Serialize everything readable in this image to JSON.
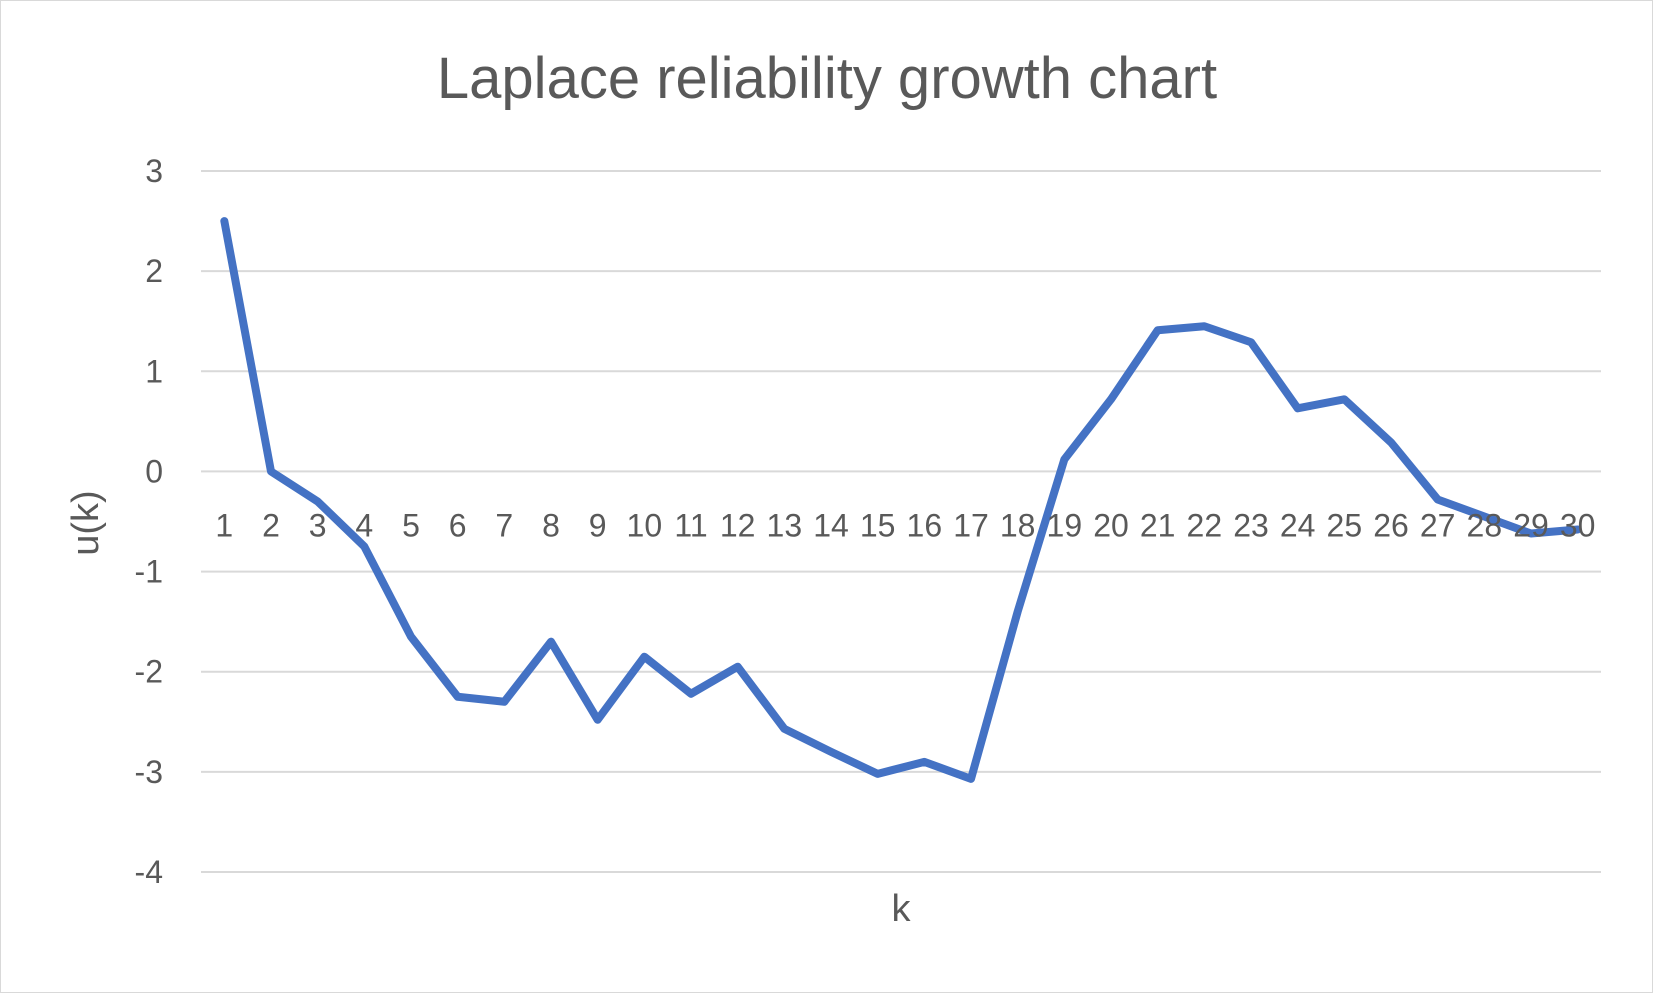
{
  "chart_data": {
    "type": "line",
    "title": "Laplace reliability growth chart",
    "xlabel": "k",
    "ylabel": "u(k)",
    "ylim": [
      -4,
      3
    ],
    "yticks": [
      3,
      2,
      1,
      0,
      -1,
      -2,
      -3,
      -4
    ],
    "grid": true,
    "legend": "none",
    "color": "#4472c4",
    "x": [
      1,
      2,
      3,
      4,
      5,
      6,
      7,
      8,
      9,
      10,
      11,
      12,
      13,
      14,
      15,
      16,
      17,
      18,
      19,
      20,
      21,
      22,
      23,
      24,
      25,
      26,
      27,
      28,
      29,
      30
    ],
    "series": [
      {
        "name": "u(k)",
        "values": [
          2.5,
          0.0,
          -0.3,
          -0.75,
          -1.65,
          -2.25,
          -2.3,
          -1.7,
          -2.48,
          -1.85,
          -2.22,
          -1.95,
          -2.57,
          -2.8,
          -3.02,
          -2.9,
          -3.07,
          -1.4,
          0.12,
          0.72,
          1.41,
          1.45,
          1.29,
          0.63,
          0.72,
          0.29,
          -0.28,
          -0.45,
          -0.62,
          -0.58
        ]
      }
    ]
  }
}
